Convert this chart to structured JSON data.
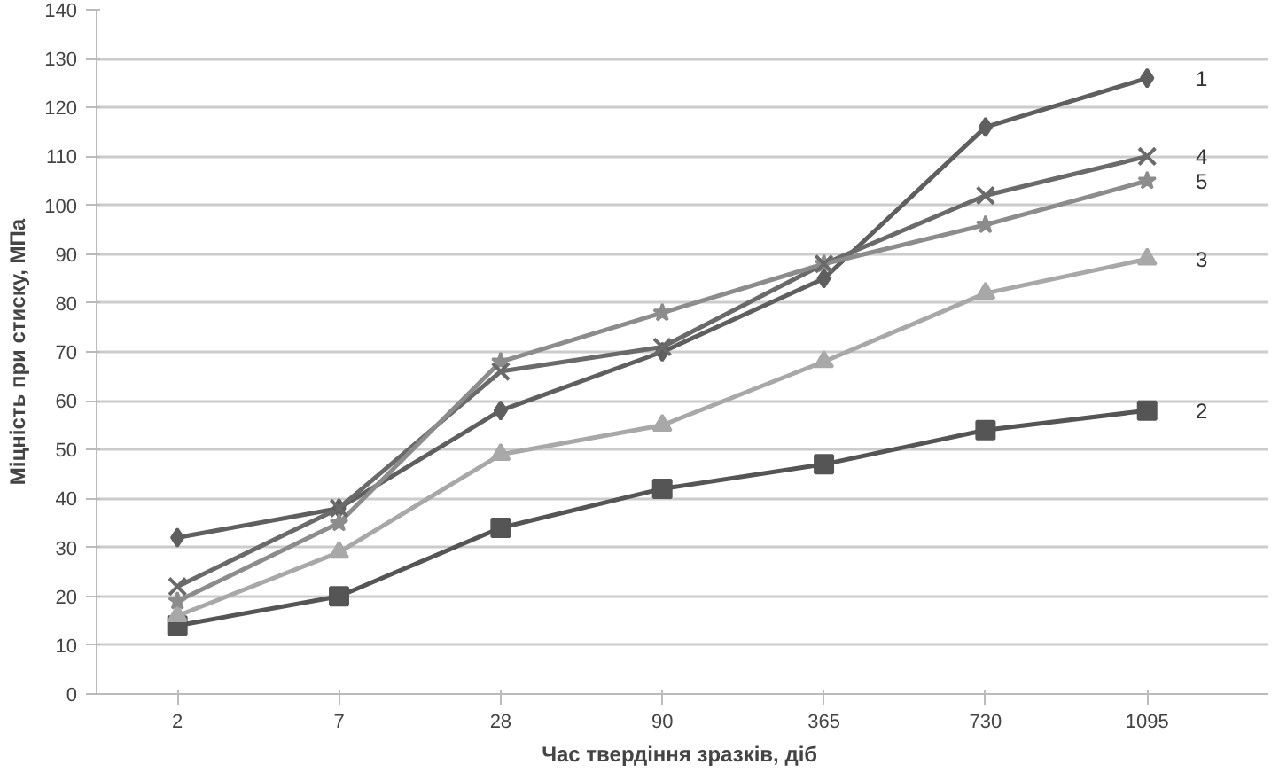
{
  "chart_data": {
    "type": "line",
    "xlabel": "Час твердіння  зразків, діб",
    "ylabel": "Міцність при стиску, МПа",
    "categories": [
      "2",
      "7",
      "28",
      "90",
      "365",
      "730",
      "1095"
    ],
    "ylim": [
      0,
      140
    ],
    "yticks": [
      0,
      10,
      20,
      30,
      40,
      50,
      60,
      70,
      80,
      90,
      100,
      110,
      120,
      130,
      140
    ],
    "grid": "y",
    "legend": false,
    "series": [
      {
        "name": "1",
        "color": "#5f5f5f",
        "marker": "diamond",
        "values": [
          32,
          38,
          58,
          70,
          85,
          116,
          126
        ]
      },
      {
        "name": "2",
        "color": "#555555",
        "marker": "square",
        "values": [
          14,
          20,
          34,
          42,
          47,
          54,
          58
        ]
      },
      {
        "name": "3",
        "color": "#a8a8a8",
        "marker": "triangle",
        "values": [
          16,
          29,
          49,
          55,
          68,
          82,
          89
        ]
      },
      {
        "name": "4",
        "color": "#6a6a6a",
        "marker": "cross",
        "values": [
          22,
          38,
          66,
          71,
          88,
          102,
          110
        ]
      },
      {
        "name": "5",
        "color": "#8c8c8c",
        "marker": "star",
        "values": [
          19,
          35,
          68,
          78,
          88,
          96,
          105
        ]
      }
    ]
  }
}
